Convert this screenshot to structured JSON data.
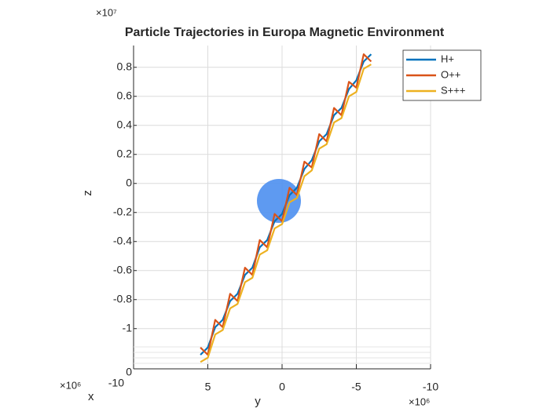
{
  "chart_data": {
    "type": "line",
    "title": "Particle Trajectories in Europa Magnetic Environment",
    "x_label": "y",
    "y_label": "z",
    "depth_label": "x",
    "x_multiplier": "×10⁶",
    "y_multiplier": "×10⁷",
    "depth_multiplier": "×10⁶",
    "x": [
      5.5,
      5,
      4.5,
      4,
      3.5,
      3,
      2.5,
      2,
      1.5,
      1,
      0.5,
      0,
      -0.5,
      -1,
      -1.5,
      -2,
      -2.5,
      -3,
      -3.5,
      -4,
      -4.5,
      -5,
      -5.5,
      -6
    ],
    "series": [
      {
        "name": "H+",
        "color": "#0072bd",
        "values": [
          -1.18,
          -1.13,
          -0.99,
          -0.94,
          -0.81,
          -0.76,
          -0.63,
          -0.58,
          -0.44,
          -0.39,
          -0.26,
          -0.21,
          -0.08,
          -0.03,
          0.1,
          0.16,
          0.29,
          0.34,
          0.47,
          0.52,
          0.65,
          0.71,
          0.84,
          0.89
        ]
      },
      {
        "name": "O++",
        "color": "#d95319",
        "values": [
          -1.13,
          -1.18,
          -0.94,
          -0.99,
          -0.76,
          -0.81,
          -0.58,
          -0.63,
          -0.39,
          -0.44,
          -0.21,
          -0.26,
          -0.03,
          -0.08,
          0.15,
          0.11,
          0.34,
          0.29,
          0.52,
          0.47,
          0.7,
          0.66,
          0.89,
          0.84
        ]
      },
      {
        "name": "S+++",
        "color": "#edb120",
        "values": [
          -1.23,
          -1.2,
          -1.04,
          -1.01,
          -0.86,
          -0.83,
          -0.68,
          -0.65,
          -0.49,
          -0.46,
          -0.31,
          -0.28,
          -0.13,
          -0.1,
          0.05,
          0.09,
          0.24,
          0.27,
          0.42,
          0.45,
          0.6,
          0.63,
          0.79,
          0.82
        ]
      }
    ],
    "xlim": [
      10,
      -10
    ],
    "xticks": [
      5,
      0,
      -5,
      -10
    ],
    "ylim": [
      -1.25,
      0.95
    ],
    "yticks": [
      0.8,
      0.6,
      0.4,
      0.2,
      0,
      -0.2,
      -0.4,
      -0.6,
      -0.8,
      -1
    ],
    "depth_ticks": [
      0,
      -10
    ],
    "grid": true,
    "legend": "top-right"
  }
}
